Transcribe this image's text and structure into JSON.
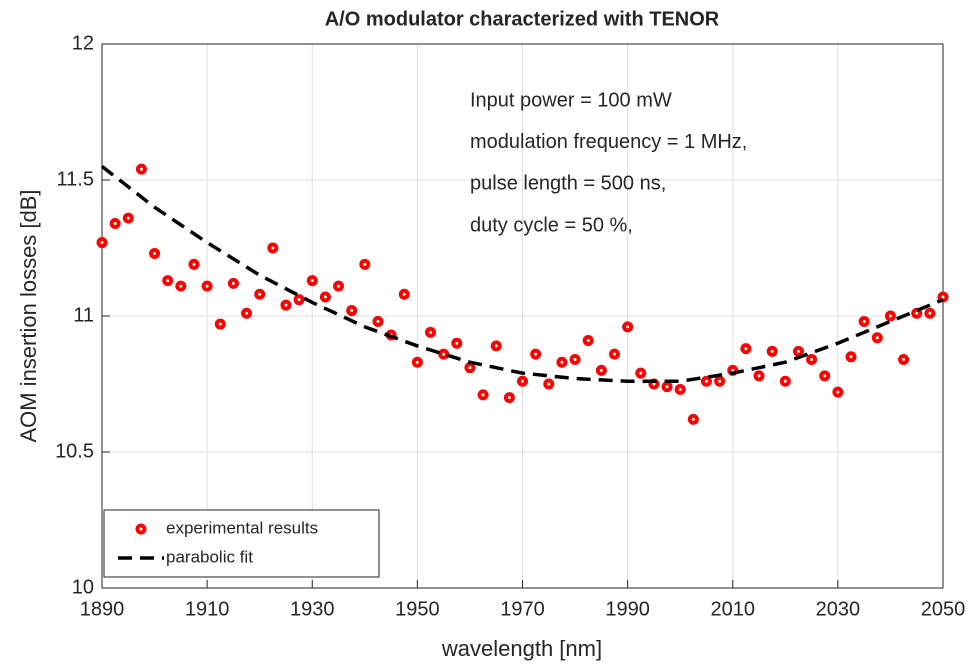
{
  "chart_data": {
    "type": "scatter",
    "title": "A/O modulator characterized with TENOR",
    "xlabel": "wavelength [nm]",
    "ylabel": "AOM insertion losses [dB]",
    "xlim": [
      1890,
      2050
    ],
    "xticks": [
      1890,
      1910,
      1930,
      1950,
      1970,
      1990,
      2010,
      2030,
      2050
    ],
    "ylim": [
      10,
      12
    ],
    "yticks": [
      10,
      10.5,
      11,
      11.5,
      12
    ],
    "grid": true,
    "legend": "lower left",
    "annotations": [
      "Input power = 100 mW",
      "modulation frequency  = 1 MHz,",
      "pulse length  = 500 ns,",
      "duty cycle = 50 %,"
    ],
    "series": [
      {
        "name": "experimental results",
        "color": "#ff0000",
        "style": "markers",
        "x": [
          1890,
          1892.5,
          1895,
          1897.5,
          1900,
          1902.5,
          1905,
          1907.5,
          1910,
          1912.5,
          1915,
          1917.5,
          1920,
          1922.5,
          1925,
          1927.5,
          1930,
          1932.5,
          1935,
          1937.5,
          1940,
          1942.5,
          1945,
          1947.5,
          1950,
          1952.5,
          1955,
          1957.5,
          1960,
          1962.5,
          1965,
          1967.5,
          1970,
          1972.5,
          1975,
          1977.5,
          1980,
          1982.5,
          1985,
          1987.5,
          1990,
          1992.5,
          1995,
          1997.5,
          2000,
          2002.5,
          2005,
          2007.5,
          2010,
          2012.5,
          2015,
          2017.5,
          2020,
          2022.5,
          2025,
          2027.5,
          2030,
          2032.5,
          2035,
          2037.5,
          2040,
          2042.5,
          2045,
          2047.5,
          2050
        ],
        "values": [
          11.27,
          11.34,
          11.36,
          11.54,
          11.23,
          11.13,
          11.11,
          11.19,
          11.11,
          10.97,
          11.12,
          11.01,
          11.08,
          11.25,
          11.04,
          11.06,
          11.13,
          11.07,
          11.11,
          11.02,
          11.19,
          10.98,
          10.93,
          11.08,
          10.83,
          10.94,
          10.86,
          10.9,
          10.81,
          10.71,
          10.89,
          10.7,
          10.76,
          10.86,
          10.75,
          10.83,
          10.84,
          10.91,
          10.8,
          10.86,
          10.96,
          10.79,
          10.75,
          10.74,
          10.73,
          10.62,
          10.76,
          10.76,
          10.8,
          10.88,
          10.78,
          10.87,
          10.76,
          10.87,
          10.84,
          10.78,
          10.72,
          10.85,
          10.98,
          10.92,
          11.0,
          10.84,
          11.01,
          11.01,
          11.07
        ]
      },
      {
        "name": "parabolic fit",
        "color": "#000000",
        "style": "dashed",
        "x": [
          1890,
          1900,
          1910,
          1920,
          1930,
          1940,
          1950,
          1960,
          1970,
          1980,
          1990,
          2000,
          2010,
          2020,
          2030,
          2040,
          2050
        ],
        "values": [
          11.55,
          11.4,
          11.27,
          11.15,
          11.05,
          10.96,
          10.89,
          10.83,
          10.79,
          10.77,
          10.76,
          10.76,
          10.79,
          10.83,
          10.9,
          10.98,
          11.06
        ]
      }
    ]
  }
}
